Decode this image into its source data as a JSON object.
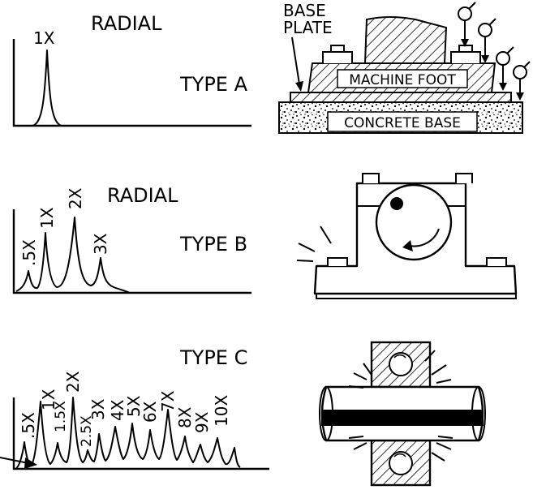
{
  "panels": {
    "a": {
      "direction": "RADIAL",
      "type": "TYPE A",
      "peaks": [
        {
          "label": "1X",
          "order": 1
        }
      ],
      "labels": {
        "base_plate": "BASE PLATE",
        "base": "BASE",
        "plate": "PLATE",
        "machine_foot": "MACHINE FOOT",
        "concrete_base": "CONCRETE BASE"
      }
    },
    "b": {
      "direction": "RADIAL",
      "type": "TYPE B",
      "peaks": [
        {
          "label": ".5X",
          "order": 0.5
        },
        {
          "label": "1X",
          "order": 1
        },
        {
          "label": "2X",
          "order": 2
        },
        {
          "label": "3X",
          "order": 3
        }
      ]
    },
    "c": {
      "type": "TYPE C",
      "peaks": [
        {
          "label": ".5X",
          "order": 0.5
        },
        {
          "label": "1X",
          "order": 1
        },
        {
          "label": "1.5X",
          "order": 1.5
        },
        {
          "label": "2X",
          "order": 2
        },
        {
          "label": "2.5X",
          "order": 2.5
        },
        {
          "label": "3X",
          "order": 3
        },
        {
          "label": "4X",
          "order": 4
        },
        {
          "label": "5X",
          "order": 5
        },
        {
          "label": "6X",
          "order": 6
        },
        {
          "label": "7X",
          "order": 7
        },
        {
          "label": "8X",
          "order": 8
        },
        {
          "label": "9X",
          "order": 9
        },
        {
          "label": "10X",
          "order": 10
        }
      ]
    }
  }
}
